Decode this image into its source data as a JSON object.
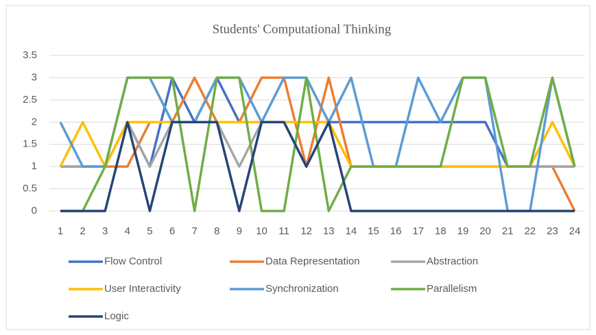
{
  "chart_data": {
    "type": "line",
    "title": "Students' Computational Thinking",
    "categories": [
      "1",
      "2",
      "3",
      "4",
      "5",
      "6",
      "7",
      "8",
      "9",
      "10",
      "11",
      "12",
      "13",
      "14",
      "15",
      "16",
      "17",
      "18",
      "19",
      "20",
      "21",
      "22",
      "23",
      "24"
    ],
    "series": [
      {
        "name": "Flow Control",
        "color": "#4472c4",
        "values": [
          1,
          1,
          1,
          2,
          1,
          3,
          2,
          3,
          2,
          2,
          2,
          2,
          2,
          2,
          2,
          2,
          2,
          2,
          2,
          2,
          1,
          1,
          1,
          1
        ]
      },
      {
        "name": "Data Representation",
        "color": "#ed7d31",
        "values": [
          1,
          1,
          1,
          1,
          2,
          2,
          3,
          2,
          2,
          3,
          3,
          1,
          3,
          1,
          1,
          1,
          1,
          1,
          1,
          1,
          1,
          1,
          1,
          0
        ]
      },
      {
        "name": "Abstraction",
        "color": "#a5a5a5",
        "values": [
          1,
          1,
          1,
          2,
          1,
          2,
          2,
          2,
          1,
          2,
          2,
          1,
          2,
          1,
          1,
          1,
          1,
          1,
          1,
          1,
          1,
          1,
          1,
          1
        ]
      },
      {
        "name": "User Interactivity",
        "color": "#ffc000",
        "values": [
          1,
          2,
          1,
          2,
          2,
          2,
          2,
          2,
          2,
          2,
          2,
          2,
          2,
          1,
          1,
          1,
          1,
          1,
          1,
          1,
          1,
          1,
          2,
          1
        ]
      },
      {
        "name": "Synchronization",
        "color": "#5b9bd5",
        "values": [
          2,
          1,
          1,
          3,
          3,
          2,
          2,
          3,
          3,
          2,
          3,
          3,
          2,
          3,
          1,
          1,
          3,
          2,
          3,
          3,
          0,
          0,
          3,
          1
        ]
      },
      {
        "name": "Parallelism",
        "color": "#70ad47",
        "values": [
          0,
          0,
          1,
          3,
          3,
          3,
          0,
          3,
          3,
          0,
          0,
          3,
          0,
          1,
          1,
          1,
          1,
          1,
          3,
          3,
          1,
          1,
          3,
          1
        ]
      },
      {
        "name": "Logic",
        "color": "#264478",
        "values": [
          0,
          0,
          0,
          2,
          0,
          2,
          2,
          2,
          0,
          2,
          2,
          1,
          2,
          0,
          0,
          0,
          0,
          0,
          0,
          0,
          0,
          0,
          0,
          0
        ]
      }
    ],
    "ylim": [
      0,
      3.5
    ],
    "yticks": [
      0,
      0.5,
      1,
      1.5,
      2,
      2.5,
      3,
      3.5
    ],
    "grid": true
  }
}
